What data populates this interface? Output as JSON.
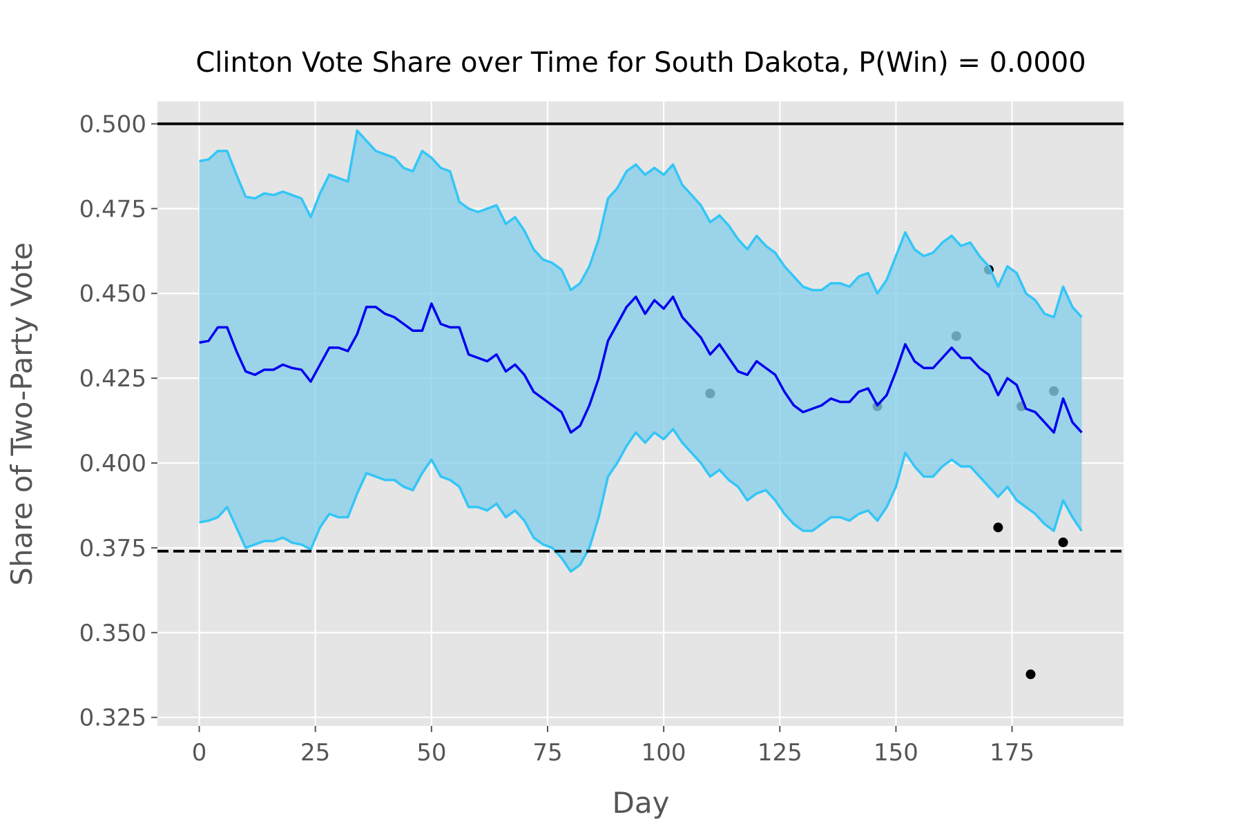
{
  "chart_data": {
    "type": "line",
    "title": "Clinton Vote Share over Time for South Dakota, P(Win) = 0.0000",
    "xlabel": "Day",
    "ylabel": "Share of Two-Party Vote",
    "x": [
      0,
      2,
      4,
      6,
      8,
      10,
      12,
      14,
      16,
      18,
      20,
      22,
      24,
      26,
      28,
      30,
      32,
      34,
      36,
      38,
      40,
      42,
      44,
      46,
      48,
      50,
      52,
      54,
      56,
      58,
      60,
      62,
      64,
      66,
      68,
      70,
      72,
      74,
      76,
      78,
      80,
      82,
      84,
      86,
      88,
      90,
      92,
      94,
      96,
      98,
      100,
      102,
      104,
      106,
      108,
      110,
      112,
      114,
      116,
      118,
      120,
      122,
      124,
      126,
      128,
      130,
      132,
      134,
      136,
      138,
      140,
      142,
      144,
      146,
      148,
      150,
      152,
      154,
      156,
      158,
      160,
      162,
      164,
      166,
      168,
      170,
      172,
      174,
      176,
      178,
      180,
      182,
      184,
      186,
      188,
      190
    ],
    "series": [
      {
        "color": "#0000ee",
        "values": [
          0.4355,
          0.436,
          0.44,
          0.44,
          0.433,
          0.427,
          0.426,
          0.4275,
          0.4275,
          0.429,
          0.428,
          0.4275,
          0.424,
          0.429,
          0.434,
          0.434,
          0.433,
          0.438,
          0.446,
          0.446,
          0.444,
          0.443,
          0.441,
          0.439,
          0.439,
          0.447,
          0.441,
          0.44,
          0.44,
          0.432,
          0.431,
          0.43,
          0.432,
          0.427,
          0.429,
          0.426,
          0.421,
          0.419,
          0.417,
          0.415,
          0.409,
          0.411,
          0.417,
          0.425,
          0.436,
          0.441,
          0.446,
          0.449,
          0.444,
          0.448,
          0.4455,
          0.449,
          0.443,
          0.44,
          0.437,
          0.432,
          0.435,
          0.431,
          0.427,
          0.426,
          0.43,
          0.428,
          0.426,
          0.421,
          0.417,
          0.415,
          0.416,
          0.417,
          0.419,
          0.418,
          0.418,
          0.421,
          0.422,
          0.417,
          0.42,
          0.427,
          0.435,
          0.43,
          0.428,
          0.428,
          0.431,
          0.434,
          0.431,
          0.431,
          0.428,
          0.426,
          0.42,
          0.425,
          0.423,
          0.416,
          0.415,
          0.412,
          0.409,
          0.419,
          0.412,
          0.409
        ]
      }
    ],
    "band": {
      "line_color": "#33c6f7",
      "fill_color": "#87ceeb",
      "upper": [
        0.489,
        0.4895,
        0.492,
        0.492,
        0.485,
        0.4785,
        0.478,
        0.4795,
        0.479,
        0.48,
        0.479,
        0.478,
        0.4725,
        0.4795,
        0.485,
        0.484,
        0.483,
        0.498,
        0.495,
        0.492,
        0.491,
        0.49,
        0.487,
        0.486,
        0.492,
        0.49,
        0.487,
        0.486,
        0.477,
        0.475,
        0.474,
        0.475,
        0.476,
        0.4705,
        0.4725,
        0.4685,
        0.463,
        0.46,
        0.459,
        0.457,
        0.451,
        0.453,
        0.458,
        0.466,
        0.478,
        0.481,
        0.486,
        0.488,
        0.485,
        0.487,
        0.485,
        0.488,
        0.482,
        0.479,
        0.476,
        0.471,
        0.473,
        0.47,
        0.466,
        0.463,
        0.467,
        0.464,
        0.462,
        0.458,
        0.455,
        0.452,
        0.451,
        0.451,
        0.453,
        0.453,
        0.452,
        0.455,
        0.456,
        0.45,
        0.454,
        0.461,
        0.468,
        0.463,
        0.461,
        0.462,
        0.465,
        0.467,
        0.464,
        0.465,
        0.461,
        0.458,
        0.452,
        0.458,
        0.456,
        0.45,
        0.448,
        0.444,
        0.443,
        0.452,
        0.446,
        0.443
      ],
      "lower": [
        0.3825,
        0.383,
        0.384,
        0.387,
        0.381,
        0.375,
        0.376,
        0.377,
        0.377,
        0.378,
        0.3765,
        0.376,
        0.3745,
        0.381,
        0.385,
        0.384,
        0.384,
        0.391,
        0.397,
        0.396,
        0.395,
        0.395,
        0.393,
        0.392,
        0.397,
        0.401,
        0.396,
        0.395,
        0.393,
        0.387,
        0.387,
        0.386,
        0.388,
        0.384,
        0.386,
        0.383,
        0.378,
        0.376,
        0.375,
        0.372,
        0.368,
        0.37,
        0.375,
        0.384,
        0.396,
        0.4,
        0.405,
        0.409,
        0.406,
        0.409,
        0.407,
        0.41,
        0.406,
        0.403,
        0.4,
        0.396,
        0.398,
        0.395,
        0.393,
        0.389,
        0.391,
        0.392,
        0.389,
        0.385,
        0.382,
        0.38,
        0.38,
        0.382,
        0.384,
        0.384,
        0.383,
        0.385,
        0.386,
        0.383,
        0.387,
        0.393,
        0.403,
        0.399,
        0.396,
        0.396,
        0.399,
        0.401,
        0.399,
        0.399,
        0.396,
        0.393,
        0.39,
        0.393,
        0.389,
        0.387,
        0.385,
        0.382,
        0.38,
        0.389,
        0.384,
        0.38
      ]
    },
    "points": {
      "color": "#000000",
      "x": [
        110,
        146,
        163,
        170,
        172,
        177,
        179,
        184,
        186
      ],
      "y": [
        0.4205,
        0.4167,
        0.4374,
        0.457,
        0.381,
        0.4167,
        0.3377,
        0.4212,
        0.3766
      ]
    },
    "hlines": [
      {
        "value": 0.5,
        "style": "solid",
        "color": "#000000"
      },
      {
        "value": 0.374,
        "style": "dashed",
        "color": "#000000"
      }
    ],
    "xlim": [
      -9,
      199
    ],
    "ylim": [
      0.3225,
      0.5066
    ],
    "xticks": [
      0,
      25,
      50,
      75,
      100,
      125,
      150,
      175
    ],
    "yticks": [
      {
        "value": 0.325,
        "label": "0.325"
      },
      {
        "value": 0.35,
        "label": "0.350"
      },
      {
        "value": 0.375,
        "label": "0.375"
      },
      {
        "value": 0.4,
        "label": "0.400"
      },
      {
        "value": 0.425,
        "label": "0.425"
      },
      {
        "value": 0.45,
        "label": "0.450"
      },
      {
        "value": 0.475,
        "label": "0.475"
      },
      {
        "value": 0.5,
        "label": "0.500"
      }
    ],
    "grid": true,
    "background": "#e5e5e5"
  }
}
